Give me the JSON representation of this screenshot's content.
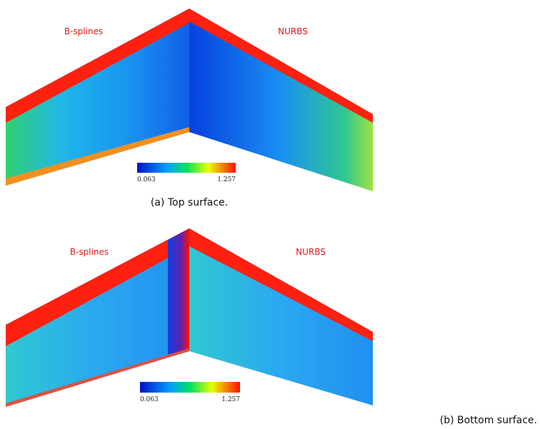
{
  "panels": [
    {
      "left_label": "B-splines",
      "right_label": "NURBS",
      "colorbar": {
        "min_label": "0.063",
        "max_label": "1.257"
      },
      "caption": "(a) Top surface."
    },
    {
      "left_label": "B-splines",
      "right_label": "NURBS",
      "colorbar": {
        "min_label": "0.063",
        "max_label": "1.257"
      },
      "caption": "(b) Bottom surface."
    }
  ]
}
